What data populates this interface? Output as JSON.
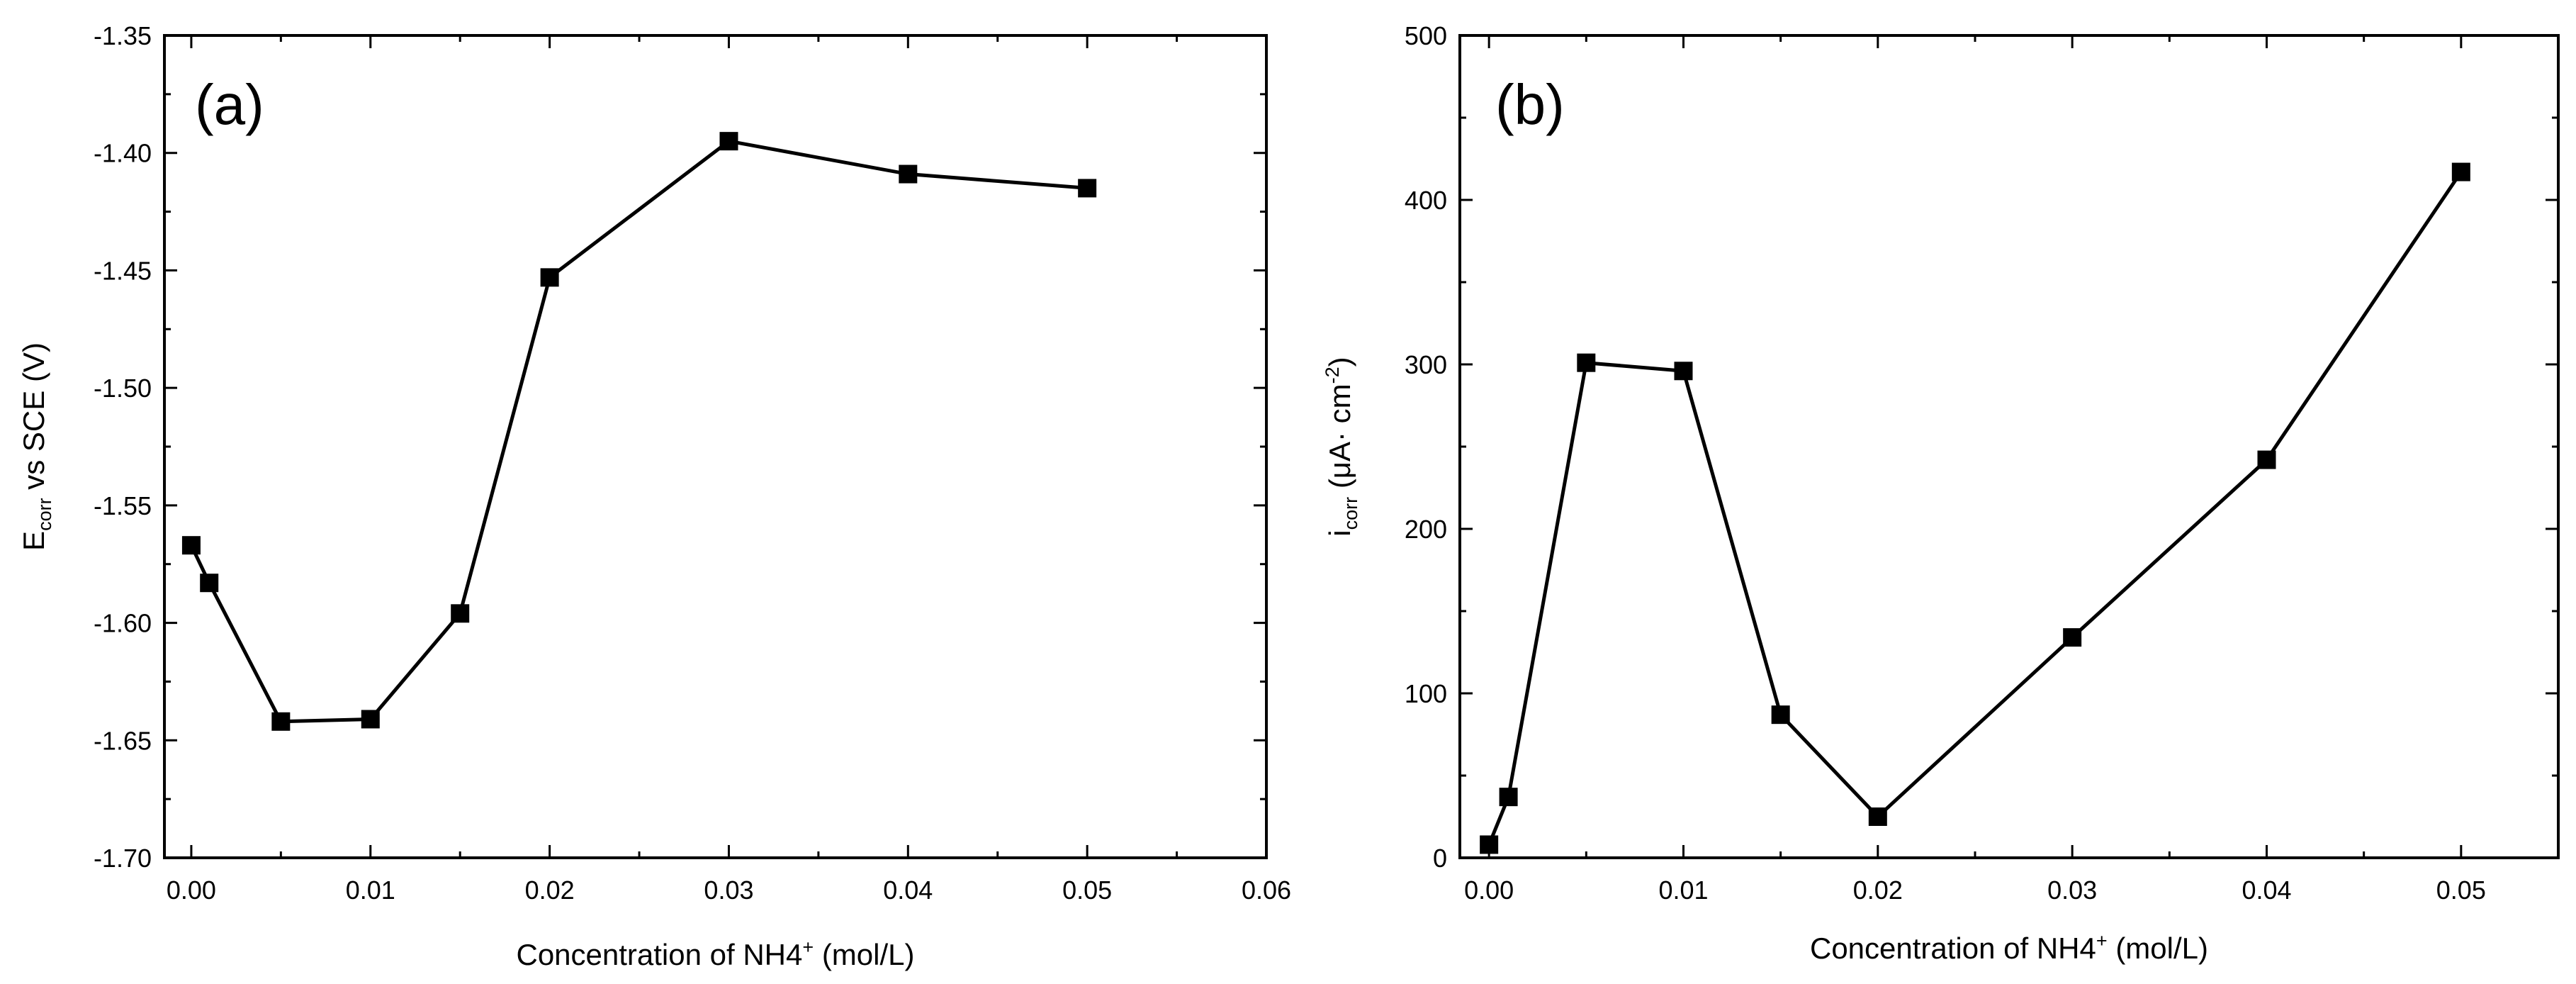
{
  "chart_data": [
    {
      "type": "line",
      "panel_label": "(a)",
      "xlabel": {
        "main": "Concentration of NH4",
        "sup": "+",
        "unit": " (mol/L)"
      },
      "ylabel": {
        "main": "E",
        "sub": "corr",
        "rest": " vs SCE (V)"
      },
      "xlim": [
        -0.0015,
        0.06
      ],
      "ylim": [
        -1.7,
        -1.35
      ],
      "xticks": [
        0.0,
        0.01,
        0.02,
        0.03,
        0.04,
        0.05,
        0.06
      ],
      "xtick_labels": [
        "0.00",
        "0.01",
        "0.02",
        "0.03",
        "0.04",
        "0.05",
        "0.06"
      ],
      "yticks": [
        -1.7,
        -1.65,
        -1.6,
        -1.55,
        -1.5,
        -1.45,
        -1.4,
        -1.35
      ],
      "ytick_labels": [
        "-1.70",
        "-1.65",
        "-1.60",
        "-1.55",
        "-1.50",
        "-1.45",
        "-1.40",
        "-1.35"
      ],
      "marker": "square",
      "series": [
        {
          "name": "Ecorr",
          "x": [
            0.0,
            0.001,
            0.005,
            0.01,
            0.015,
            0.02,
            0.03,
            0.04,
            0.05
          ],
          "y": [
            -1.567,
            -1.583,
            -1.642,
            -1.641,
            -1.596,
            -1.453,
            -1.395,
            -1.409,
            -1.415
          ]
        }
      ]
    },
    {
      "type": "line",
      "panel_label": "(b)",
      "xlabel": {
        "main": "Concentration of NH4",
        "sup": "+",
        "unit": " (mol/L)"
      },
      "ylabel": {
        "main": "i",
        "sub": "corr",
        "rest": " (μA· cm",
        "sup": "-2",
        "close": ")"
      },
      "xlim": [
        -0.0015,
        0.055
      ],
      "ylim": [
        0,
        500
      ],
      "xticks": [
        0.0,
        0.01,
        0.02,
        0.03,
        0.04,
        0.05
      ],
      "xtick_labels": [
        "0.00",
        "0.01",
        "0.02",
        "0.03",
        "0.04",
        "0.05"
      ],
      "yticks": [
        0,
        100,
        200,
        300,
        400,
        500
      ],
      "ytick_labels": [
        "0",
        "100",
        "200",
        "300",
        "400",
        "500"
      ],
      "marker": "square",
      "series": [
        {
          "name": "icorr",
          "x": [
            0.0,
            0.001,
            0.005,
            0.01,
            0.015,
            0.02,
            0.03,
            0.04,
            0.05
          ],
          "y": [
            8,
            37,
            301,
            296,
            87,
            25,
            134,
            242,
            417
          ]
        }
      ]
    }
  ]
}
